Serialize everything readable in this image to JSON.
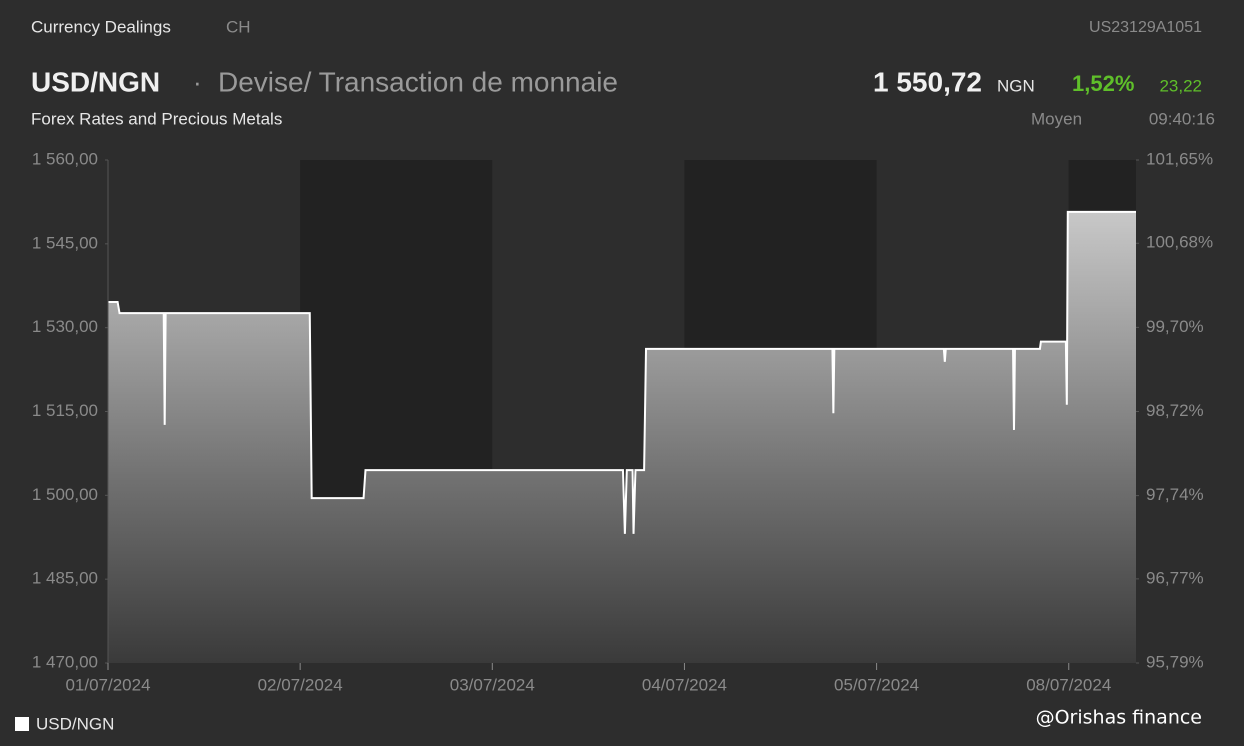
{
  "header": {
    "category": "Currency Dealings",
    "exchange": "CH",
    "isin": "US23129A1051",
    "symbol": "USD/NGN",
    "separator": "·",
    "name": "Devise/ Transaction de monnaie",
    "price": "1 550,72",
    "currency": "NGN",
    "change_pct": "1,52%",
    "change": "23,22",
    "subtitle": "Forex Rates and Precious Metals",
    "price_type": "Moyen",
    "time": "09:40:16"
  },
  "footer": {
    "watermark": "@Orishas finance"
  },
  "chart_data": {
    "type": "line",
    "area": true,
    "x": [
      0,
      0.05,
      0.06,
      0.29,
      0.295,
      0.3,
      1.05,
      1.06,
      1.33,
      1.34,
      2.68,
      2.69,
      2.7,
      2.73,
      2.735,
      2.745,
      2.79,
      2.8,
      3.77,
      3.775,
      3.78,
      4.35,
      4.355,
      4.36,
      4.71,
      4.715,
      4.72,
      4.85,
      4.855,
      4.985,
      4.99,
      4.995,
      5.35
    ],
    "series": [
      {
        "name": "USD/NGN",
        "color": "#ffffff",
        "values": [
          1534.6,
          1534.6,
          1532.6,
          1532.6,
          1512.6,
          1532.6,
          1532.6,
          1499.5,
          1499.5,
          1504.5,
          1504.5,
          1493.1,
          1504.5,
          1504.5,
          1493.1,
          1504.5,
          1504.5,
          1526.2,
          1526.2,
          1514.7,
          1526.2,
          1526.2,
          1523.9,
          1526.2,
          1526.2,
          1511.7,
          1526.2,
          1526.2,
          1527.5,
          1527.5,
          1516.2,
          1550.72,
          1550.72
        ]
      }
    ],
    "xlim": [
      0,
      5.35
    ],
    "xticks": [
      {
        "value": 0,
        "label": "01/07/2024"
      },
      {
        "value": 1,
        "label": "02/07/2024"
      },
      {
        "value": 2,
        "label": "03/07/2024"
      },
      {
        "value": 3,
        "label": "04/07/2024"
      },
      {
        "value": 4,
        "label": "05/07/2024"
      },
      {
        "value": 5,
        "label": "08/07/2024"
      }
    ],
    "ylim": [
      1470,
      1560
    ],
    "yticks": [
      {
        "value": 1560,
        "label": "1 560,00"
      },
      {
        "value": 1545,
        "label": "1 545,00"
      },
      {
        "value": 1530,
        "label": "1 530,00"
      },
      {
        "value": 1515,
        "label": "1 515,00"
      },
      {
        "value": 1500,
        "label": "1 500,00"
      },
      {
        "value": 1485,
        "label": "1 485,00"
      },
      {
        "value": 1470,
        "label": "1 470,00"
      }
    ],
    "y2lim": [
      95.79,
      101.65
    ],
    "y2ticks": [
      {
        "value": 101.65,
        "label": "101,65%"
      },
      {
        "value": 100.68,
        "label": "100,68%"
      },
      {
        "value": 99.7,
        "label": "99,70%"
      },
      {
        "value": 98.72,
        "label": "98,72%"
      },
      {
        "value": 97.74,
        "label": "97,74%"
      },
      {
        "value": 96.77,
        "label": "96,77%"
      },
      {
        "value": 95.79,
        "label": "95,79%"
      }
    ]
  }
}
